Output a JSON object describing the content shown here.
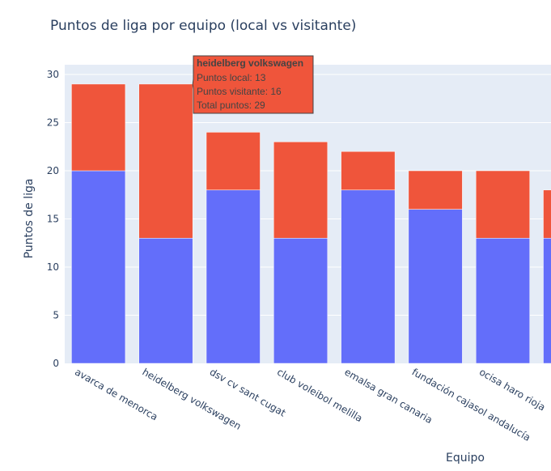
{
  "chart_data": {
    "type": "bar",
    "barmode": "stack",
    "title": "Puntos de liga por equipo (local vs visitante)",
    "xlabel": "Equipo",
    "ylabel": "Puntos de liga",
    "ylim": [
      0,
      30
    ],
    "yticks": [
      "0",
      "5",
      "10",
      "15",
      "20",
      "25",
      "30"
    ],
    "grid": true,
    "categories": [
      "avarca de menorca",
      "heidelberg volkswagen",
      "dsv cv sant cugat",
      "club voleibol melilla",
      "emalsa gran canaria",
      "fundación cajasol andalucía",
      "ocisa haro rioja",
      ""
    ],
    "series": [
      {
        "color": "#636efa",
        "values": [
          20,
          13,
          18,
          13,
          18,
          16,
          13,
          13
        ]
      },
      {
        "color": "#ef553b",
        "values": [
          9,
          16,
          6,
          10,
          4,
          4,
          7,
          5
        ]
      }
    ],
    "colors": {
      "plot_bg": "#e5ecf6",
      "grid": "#ffffff",
      "text": "#2a3f5f"
    }
  },
  "tooltip": {
    "title": "heidelberg volkswagen",
    "line1": "Puntos local: 13",
    "line2": "Puntos visitante: 16",
    "line3": "Total puntos: 29",
    "bg_color": "#ef553b",
    "category_index": 1
  }
}
